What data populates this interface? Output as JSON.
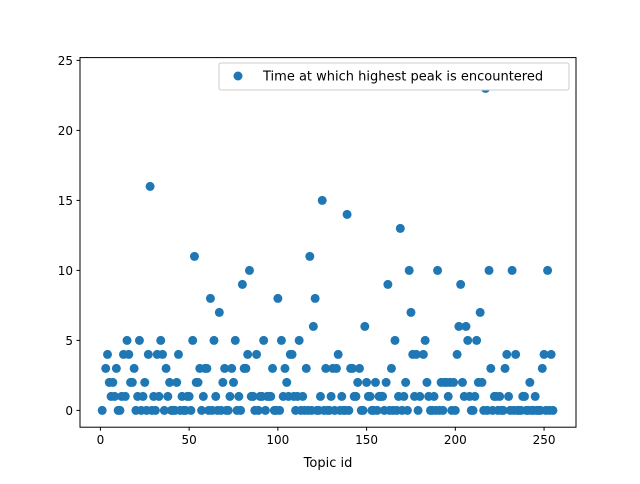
{
  "chart_data": {
    "type": "scatter",
    "title": "",
    "xlabel": "Topic id",
    "ylabel": "",
    "xlim": [
      -11.5,
      268
    ],
    "ylim": [
      -1.2,
      25.2
    ],
    "x_ticks": [
      0,
      50,
      100,
      150,
      200,
      250
    ],
    "y_ticks": [
      0,
      5,
      10,
      15,
      20,
      25
    ],
    "grid": false,
    "legend_position": "top-right",
    "series": [
      {
        "name": "Time at which highest peak is encountered",
        "color": "#1f77b4",
        "points": [
          [
            1,
            0
          ],
          [
            3,
            3
          ],
          [
            4,
            4
          ],
          [
            5,
            2
          ],
          [
            6,
            1
          ],
          [
            7,
            2
          ],
          [
            8,
            1
          ],
          [
            9,
            3
          ],
          [
            10,
            0
          ],
          [
            11,
            0
          ],
          [
            12,
            1
          ],
          [
            13,
            4
          ],
          [
            14,
            1
          ],
          [
            15,
            5
          ],
          [
            16,
            4
          ],
          [
            17,
            2
          ],
          [
            18,
            2
          ],
          [
            19,
            3
          ],
          [
            20,
            0
          ],
          [
            21,
            1
          ],
          [
            22,
            5
          ],
          [
            23,
            0
          ],
          [
            24,
            1
          ],
          [
            25,
            2
          ],
          [
            26,
            0
          ],
          [
            27,
            4
          ],
          [
            28,
            16
          ],
          [
            29,
            0
          ],
          [
            30,
            1
          ],
          [
            31,
            0
          ],
          [
            32,
            4
          ],
          [
            33,
            1
          ],
          [
            34,
            5
          ],
          [
            35,
            4
          ],
          [
            36,
            0
          ],
          [
            37,
            3
          ],
          [
            38,
            1
          ],
          [
            39,
            2
          ],
          [
            40,
            0
          ],
          [
            41,
            0
          ],
          [
            42,
            0
          ],
          [
            43,
            2
          ],
          [
            44,
            4
          ],
          [
            45,
            0
          ],
          [
            46,
            1
          ],
          [
            47,
            0
          ],
          [
            48,
            0
          ],
          [
            49,
            1
          ],
          [
            50,
            1
          ],
          [
            51,
            0
          ],
          [
            52,
            5
          ],
          [
            53,
            11
          ],
          [
            54,
            2
          ],
          [
            55,
            2
          ],
          [
            56,
            3
          ],
          [
            57,
            0
          ],
          [
            58,
            1
          ],
          [
            59,
            3
          ],
          [
            60,
            3
          ],
          [
            61,
            0
          ],
          [
            62,
            8
          ],
          [
            63,
            0
          ],
          [
            64,
            5
          ],
          [
            65,
            1
          ],
          [
            66,
            0
          ],
          [
            67,
            7
          ],
          [
            68,
            0
          ],
          [
            69,
            2
          ],
          [
            70,
            3
          ],
          [
            71,
            0
          ],
          [
            72,
            0
          ],
          [
            73,
            1
          ],
          [
            74,
            3
          ],
          [
            75,
            2
          ],
          [
            76,
            5
          ],
          [
            77,
            0
          ],
          [
            78,
            1
          ],
          [
            79,
            0
          ],
          [
            80,
            9
          ],
          [
            81,
            3
          ],
          [
            82,
            3
          ],
          [
            83,
            4
          ],
          [
            84,
            10
          ],
          [
            85,
            1
          ],
          [
            86,
            1
          ],
          [
            87,
            0
          ],
          [
            88,
            4
          ],
          [
            89,
            0
          ],
          [
            90,
            1
          ],
          [
            91,
            1
          ],
          [
            92,
            5
          ],
          [
            93,
            0
          ],
          [
            94,
            1
          ],
          [
            95,
            1
          ],
          [
            96,
            1
          ],
          [
            97,
            3
          ],
          [
            98,
            0
          ],
          [
            99,
            0
          ],
          [
            100,
            8
          ],
          [
            101,
            0
          ],
          [
            102,
            5
          ],
          [
            103,
            1
          ],
          [
            104,
            3
          ],
          [
            105,
            2
          ],
          [
            106,
            1
          ],
          [
            107,
            4
          ],
          [
            108,
            4
          ],
          [
            109,
            1
          ],
          [
            110,
            0
          ],
          [
            111,
            1
          ],
          [
            112,
            5
          ],
          [
            113,
            0
          ],
          [
            114,
            1
          ],
          [
            115,
            0
          ],
          [
            116,
            3
          ],
          [
            117,
            0
          ],
          [
            118,
            11
          ],
          [
            119,
            0
          ],
          [
            120,
            6
          ],
          [
            121,
            8
          ],
          [
            122,
            0
          ],
          [
            123,
            0
          ],
          [
            124,
            1
          ],
          [
            125,
            15
          ],
          [
            126,
            0
          ],
          [
            127,
            3
          ],
          [
            128,
            0
          ],
          [
            129,
            0
          ],
          [
            130,
            1
          ],
          [
            131,
            3
          ],
          [
            132,
            0
          ],
          [
            133,
            3
          ],
          [
            134,
            4
          ],
          [
            135,
            0
          ],
          [
            136,
            1
          ],
          [
            137,
            0
          ],
          [
            138,
            0
          ],
          [
            139,
            14
          ],
          [
            140,
            0
          ],
          [
            141,
            3
          ],
          [
            142,
            3
          ],
          [
            143,
            1
          ],
          [
            144,
            1
          ],
          [
            145,
            2
          ],
          [
            146,
            3
          ],
          [
            147,
            0
          ],
          [
            148,
            0
          ],
          [
            149,
            6
          ],
          [
            150,
            2
          ],
          [
            151,
            1
          ],
          [
            152,
            1
          ],
          [
            153,
            0
          ],
          [
            154,
            0
          ],
          [
            155,
            2
          ],
          [
            156,
            0
          ],
          [
            157,
            1
          ],
          [
            158,
            1
          ],
          [
            159,
            1
          ],
          [
            160,
            0
          ],
          [
            161,
            2
          ],
          [
            162,
            9
          ],
          [
            163,
            0
          ],
          [
            164,
            3
          ],
          [
            165,
            0
          ],
          [
            166,
            5
          ],
          [
            167,
            0
          ],
          [
            168,
            1
          ],
          [
            169,
            13
          ],
          [
            170,
            0
          ],
          [
            171,
            1
          ],
          [
            172,
            2
          ],
          [
            173,
            0
          ],
          [
            174,
            10
          ],
          [
            175,
            7
          ],
          [
            176,
            4
          ],
          [
            177,
            1
          ],
          [
            178,
            4
          ],
          [
            179,
            0
          ],
          [
            180,
            1
          ],
          [
            181,
            24
          ],
          [
            182,
            4
          ],
          [
            183,
            5
          ],
          [
            184,
            2
          ],
          [
            185,
            1
          ],
          [
            186,
            0
          ],
          [
            187,
            0
          ],
          [
            188,
            1
          ],
          [
            189,
            0
          ],
          [
            190,
            10
          ],
          [
            191,
            0
          ],
          [
            192,
            2
          ],
          [
            193,
            0
          ],
          [
            194,
            2
          ],
          [
            195,
            2
          ],
          [
            196,
            1
          ],
          [
            197,
            2
          ],
          [
            198,
            0
          ],
          [
            199,
            2
          ],
          [
            200,
            0
          ],
          [
            201,
            4
          ],
          [
            202,
            6
          ],
          [
            203,
            9
          ],
          [
            204,
            2
          ],
          [
            205,
            1
          ],
          [
            206,
            6
          ],
          [
            207,
            5
          ],
          [
            208,
            1
          ],
          [
            209,
            0
          ],
          [
            210,
            0
          ],
          [
            211,
            1
          ],
          [
            212,
            5
          ],
          [
            213,
            2
          ],
          [
            214,
            7
          ],
          [
            215,
            2
          ],
          [
            216,
            0
          ],
          [
            217,
            23
          ],
          [
            218,
            0
          ],
          [
            219,
            10
          ],
          [
            220,
            3
          ],
          [
            221,
            0
          ],
          [
            222,
            1
          ],
          [
            223,
            1
          ],
          [
            224,
            0
          ],
          [
            225,
            1
          ],
          [
            226,
            0
          ],
          [
            227,
            0
          ],
          [
            228,
            3
          ],
          [
            229,
            4
          ],
          [
            230,
            1
          ],
          [
            231,
            0
          ],
          [
            232,
            10
          ],
          [
            233,
            0
          ],
          [
            234,
            4
          ],
          [
            235,
            0
          ],
          [
            236,
            0
          ],
          [
            237,
            0
          ],
          [
            238,
            1
          ],
          [
            239,
            1
          ],
          [
            240,
            0
          ],
          [
            241,
            0
          ],
          [
            242,
            2
          ],
          [
            243,
            0
          ],
          [
            244,
            0
          ],
          [
            245,
            1
          ],
          [
            246,
            0
          ],
          [
            247,
            0
          ],
          [
            248,
            0
          ],
          [
            249,
            3
          ],
          [
            250,
            4
          ],
          [
            251,
            0
          ],
          [
            252,
            10
          ],
          [
            253,
            0
          ],
          [
            254,
            4
          ],
          [
            255,
            0
          ]
        ]
      }
    ]
  }
}
